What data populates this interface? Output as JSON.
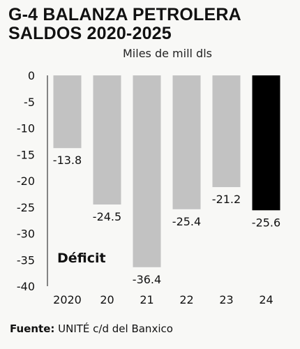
{
  "chart_data": {
    "type": "bar",
    "title_lines": [
      "G-4 BALANZA PETROLERA",
      "SALDOS 2020-2025"
    ],
    "unit": "Miles de mill dls",
    "categories": [
      "2020",
      "20",
      "21",
      "22",
      "23",
      "24"
    ],
    "values": [
      -13.8,
      -24.5,
      -36.4,
      -25.4,
      -21.2,
      -25.6
    ],
    "value_labels": [
      "-13.8",
      "-24.5",
      "-36.4",
      "-25.4",
      "-21.2",
      "-25.6"
    ],
    "ylim": [
      -40,
      0
    ],
    "yticks": [
      0,
      -5,
      -10,
      -15,
      -20,
      -25,
      -30,
      -35,
      -40
    ],
    "ytick_labels": [
      "0",
      "-5",
      "-10",
      "-15",
      "-20",
      "-25",
      "-30",
      "-35",
      "-40"
    ],
    "annotation": "Déficit",
    "colors": {
      "default": "#c2c2c2",
      "highlight": "#000000"
    },
    "highlight_index": 5,
    "grid": false
  },
  "source": {
    "label": "Fuente:",
    "text": " UNITÉ c/d del Banxico"
  }
}
